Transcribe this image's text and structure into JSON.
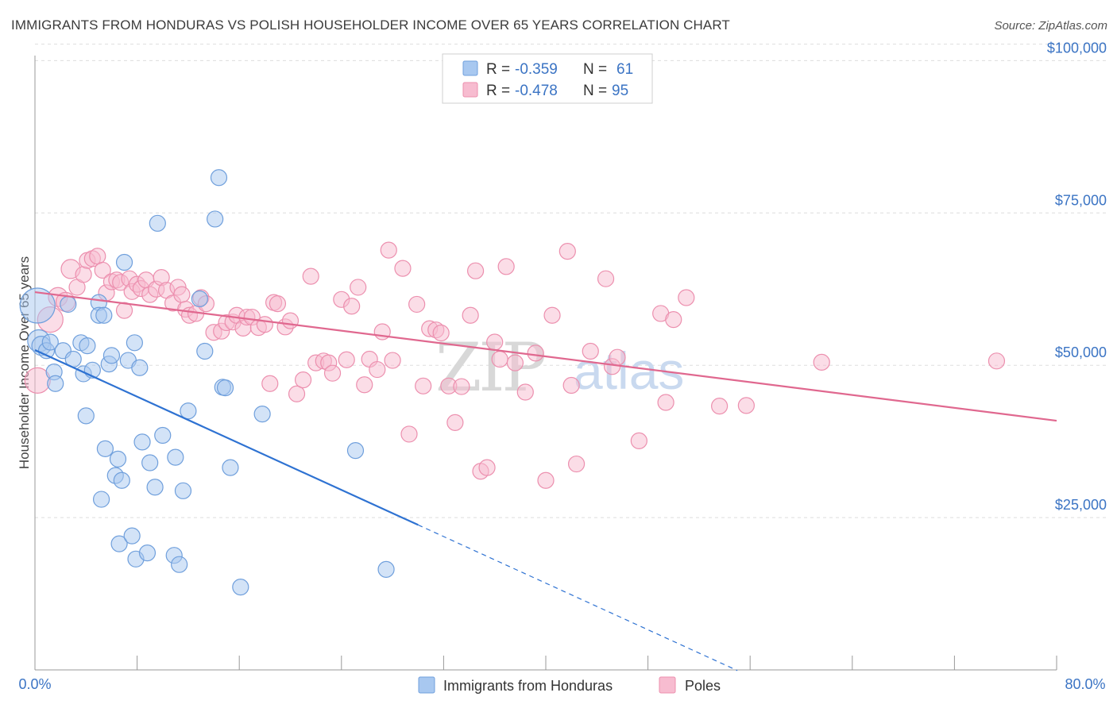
{
  "header": {
    "title": "IMMIGRANTS FROM HONDURAS VS POLISH HOUSEHOLDER INCOME OVER 65 YEARS CORRELATION CHART",
    "source": "Source: ZipAtlas.com"
  },
  "watermark": {
    "zip": "ZIP",
    "atlas": "atlas"
  },
  "colors": {
    "blue_fill": "#a8c8f0",
    "blue_stroke": "#6f9fdc",
    "blue_line": "#2e72d2",
    "pink_fill": "#f7bcd0",
    "pink_stroke": "#ec8fae",
    "pink_line": "#e0688f",
    "tick_text": "#3b74c4",
    "grid": "#dddddd"
  },
  "legend": {
    "rows": [
      {
        "r_label": "R =",
        "r_value": "-0.359",
        "n_label": "N =",
        "n_value": "61"
      },
      {
        "r_label": "R =",
        "r_value": "-0.478",
        "n_label": "N =",
        "n_value": "95"
      }
    ]
  },
  "chart_data": {
    "type": "scatter",
    "title": "IMMIGRANTS FROM HONDURAS VS POLISH HOUSEHOLDER INCOME OVER 65 YEARS CORRELATION CHART",
    "xlabel": "",
    "ylabel": "Householder Income Over 65 years",
    "xlim": [
      0,
      80
    ],
    "ylim": [
      0,
      105000
    ],
    "x_tick_labels": [
      "0.0%",
      "80.0%"
    ],
    "y_ticks": [
      25000,
      50000,
      75000,
      100000
    ],
    "y_tick_labels": [
      "$25,000",
      "$50,000",
      "$75,000",
      "$100,000"
    ],
    "grid": "horizontal dashed",
    "legend_position": "bottom",
    "series": [
      {
        "name": "Immigrants from Honduras",
        "color": "#a8c8f0",
        "trend": {
          "x_start": 0,
          "y_start": 52500,
          "x_solid_end": 30,
          "y_solid_end": 23800,
          "x_dash_end": 55,
          "y_dash_end": -100
        },
        "points": [
          [
            0.2,
            59800,
            2.2
          ],
          [
            0.3,
            54000,
            1.4
          ],
          [
            0.5,
            53200,
            1.2
          ],
          [
            0.9,
            52400,
            1
          ],
          [
            1.2,
            53800,
            1
          ],
          [
            1.5,
            48900,
            1
          ],
          [
            1.6,
            47000,
            1
          ],
          [
            2.2,
            52400,
            1
          ],
          [
            2.6,
            60000,
            1
          ],
          [
            3.0,
            51000,
            1
          ],
          [
            3.6,
            53700,
            1
          ],
          [
            3.8,
            48600,
            1
          ],
          [
            4.0,
            41700,
            1
          ],
          [
            4.1,
            53200,
            1
          ],
          [
            4.5,
            49200,
            1
          ],
          [
            5.0,
            60300,
            1
          ],
          [
            5.0,
            58200,
            1
          ],
          [
            5.2,
            28000,
            1
          ],
          [
            5.4,
            58200,
            1
          ],
          [
            5.5,
            36300,
            1
          ],
          [
            5.8,
            50200,
            1
          ],
          [
            6.0,
            51600,
            1
          ],
          [
            6.3,
            31900,
            1
          ],
          [
            6.5,
            34600,
            1
          ],
          [
            6.6,
            20700,
            1
          ],
          [
            6.8,
            31100,
            1
          ],
          [
            7.0,
            66900,
            1
          ],
          [
            7.3,
            50800,
            1
          ],
          [
            7.6,
            22000,
            1
          ],
          [
            7.8,
            53700,
            1
          ],
          [
            7.9,
            18200,
            1
          ],
          [
            8.2,
            49600,
            1
          ],
          [
            8.4,
            37400,
            1
          ],
          [
            8.8,
            19200,
            1
          ],
          [
            9.0,
            34000,
            1
          ],
          [
            9.4,
            30000,
            1
          ],
          [
            9.6,
            73300,
            1
          ],
          [
            10.0,
            38500,
            1
          ],
          [
            10.9,
            18800,
            1
          ],
          [
            11.0,
            34900,
            1
          ],
          [
            11.3,
            17300,
            1
          ],
          [
            11.6,
            29400,
            1
          ],
          [
            12.0,
            42500,
            1
          ],
          [
            12.9,
            60900,
            1
          ],
          [
            13.3,
            52300,
            1
          ],
          [
            14.1,
            74000,
            1
          ],
          [
            14.4,
            80800,
            1
          ],
          [
            14.7,
            46400,
            1
          ],
          [
            14.9,
            46300,
            1
          ],
          [
            15.3,
            33200,
            1
          ],
          [
            16.1,
            13600,
            1
          ],
          [
            17.8,
            42000,
            1
          ],
          [
            25.1,
            36000,
            1
          ],
          [
            27.5,
            16500,
            1
          ]
        ]
      },
      {
        "name": "Poles",
        "color": "#f7bcd0",
        "trend": {
          "x_start": 0,
          "y_start": 62000,
          "x_end": 80,
          "y_end": 40900
        },
        "points": [
          [
            0.2,
            47500,
            1.6
          ],
          [
            1.2,
            57500,
            1.6
          ],
          [
            1.8,
            61200,
            1.2
          ],
          [
            2.4,
            60400,
            1.2
          ],
          [
            2.8,
            65800,
            1.2
          ],
          [
            3.3,
            62800,
            1
          ],
          [
            3.8,
            64900,
            1
          ],
          [
            4.1,
            67200,
            1
          ],
          [
            4.5,
            67500,
            1
          ],
          [
            4.9,
            67900,
            1
          ],
          [
            5.3,
            65600,
            1
          ],
          [
            5.6,
            61900,
            1
          ],
          [
            6.0,
            63700,
            1
          ],
          [
            6.4,
            64000,
            1
          ],
          [
            6.7,
            63600,
            1
          ],
          [
            7.0,
            59000,
            1
          ],
          [
            7.4,
            64200,
            1
          ],
          [
            7.6,
            62100,
            1
          ],
          [
            8.0,
            63300,
            1
          ],
          [
            8.3,
            62600,
            1
          ],
          [
            8.7,
            64000,
            1
          ],
          [
            9.0,
            61600,
            1
          ],
          [
            9.5,
            62500,
            1
          ],
          [
            9.9,
            64400,
            1
          ],
          [
            10.3,
            62300,
            1
          ],
          [
            10.8,
            60200,
            1
          ],
          [
            11.2,
            62800,
            1
          ],
          [
            11.5,
            61600,
            1
          ],
          [
            11.8,
            59200,
            1
          ],
          [
            12.1,
            58200,
            1
          ],
          [
            12.6,
            58500,
            1
          ],
          [
            13.0,
            61100,
            1
          ],
          [
            13.4,
            60100,
            1
          ],
          [
            14.0,
            55400,
            1
          ],
          [
            14.6,
            55600,
            1
          ],
          [
            15.0,
            57000,
            1
          ],
          [
            15.5,
            57100,
            1
          ],
          [
            15.8,
            58200,
            1
          ],
          [
            16.3,
            56100,
            1
          ],
          [
            16.6,
            57900,
            1
          ],
          [
            17.0,
            57900,
            1
          ],
          [
            17.5,
            56200,
            1
          ],
          [
            18.0,
            56700,
            1
          ],
          [
            18.4,
            47000,
            1
          ],
          [
            18.7,
            60300,
            1
          ],
          [
            19.0,
            60100,
            1
          ],
          [
            19.6,
            56300,
            1
          ],
          [
            20.0,
            57300,
            1
          ],
          [
            20.5,
            45300,
            1
          ],
          [
            21.0,
            47600,
            1
          ],
          [
            21.6,
            64600,
            1
          ],
          [
            22.0,
            50400,
            1
          ],
          [
            22.6,
            50700,
            1
          ],
          [
            23.0,
            50400,
            1
          ],
          [
            23.3,
            48700,
            1
          ],
          [
            24.0,
            60800,
            1
          ],
          [
            24.4,
            50900,
            1
          ],
          [
            24.8,
            59700,
            1
          ],
          [
            25.3,
            62800,
            1
          ],
          [
            25.8,
            46800,
            1
          ],
          [
            26.2,
            51000,
            1
          ],
          [
            26.8,
            49300,
            1
          ],
          [
            27.2,
            55500,
            1
          ],
          [
            27.7,
            68900,
            1
          ],
          [
            28.0,
            50800,
            1
          ],
          [
            28.8,
            65900,
            1
          ],
          [
            29.3,
            38700,
            1
          ],
          [
            29.9,
            60000,
            1
          ],
          [
            30.4,
            46600,
            1
          ],
          [
            30.9,
            56000,
            1
          ],
          [
            31.4,
            55800,
            1
          ],
          [
            31.8,
            55300,
            1
          ],
          [
            32.4,
            46600,
            1
          ],
          [
            32.9,
            40600,
            1
          ],
          [
            33.4,
            46500,
            1
          ],
          [
            34.1,
            58200,
            1
          ],
          [
            34.5,
            65500,
            1
          ],
          [
            34.9,
            32600,
            1
          ],
          [
            35.4,
            33200,
            1
          ],
          [
            36.0,
            53800,
            1
          ],
          [
            36.4,
            51000,
            1
          ],
          [
            36.9,
            66200,
            1
          ],
          [
            37.6,
            50400,
            1
          ],
          [
            38.4,
            45600,
            1
          ],
          [
            39.2,
            52000,
            1
          ],
          [
            40.0,
            31100,
            1
          ],
          [
            40.5,
            58200,
            1
          ],
          [
            41.7,
            68700,
            1
          ],
          [
            42.0,
            46700,
            1
          ],
          [
            42.4,
            33800,
            1
          ],
          [
            43.5,
            52300,
            1
          ],
          [
            44.7,
            64200,
            1
          ],
          [
            45.2,
            49800,
            1
          ],
          [
            45.6,
            51300,
            1
          ],
          [
            47.3,
            37600,
            1
          ],
          [
            49.0,
            58500,
            1
          ],
          [
            49.4,
            43900,
            1
          ],
          [
            50.0,
            57500,
            1
          ],
          [
            51.0,
            61100,
            1
          ],
          [
            53.6,
            43300,
            1
          ],
          [
            55.7,
            43400,
            1
          ],
          [
            61.6,
            50500,
            1
          ],
          [
            75.3,
            50700,
            1
          ]
        ]
      }
    ]
  },
  "bottom_legend": {
    "items": [
      {
        "label": "Immigrants from Honduras"
      },
      {
        "label": "Poles"
      }
    ]
  }
}
